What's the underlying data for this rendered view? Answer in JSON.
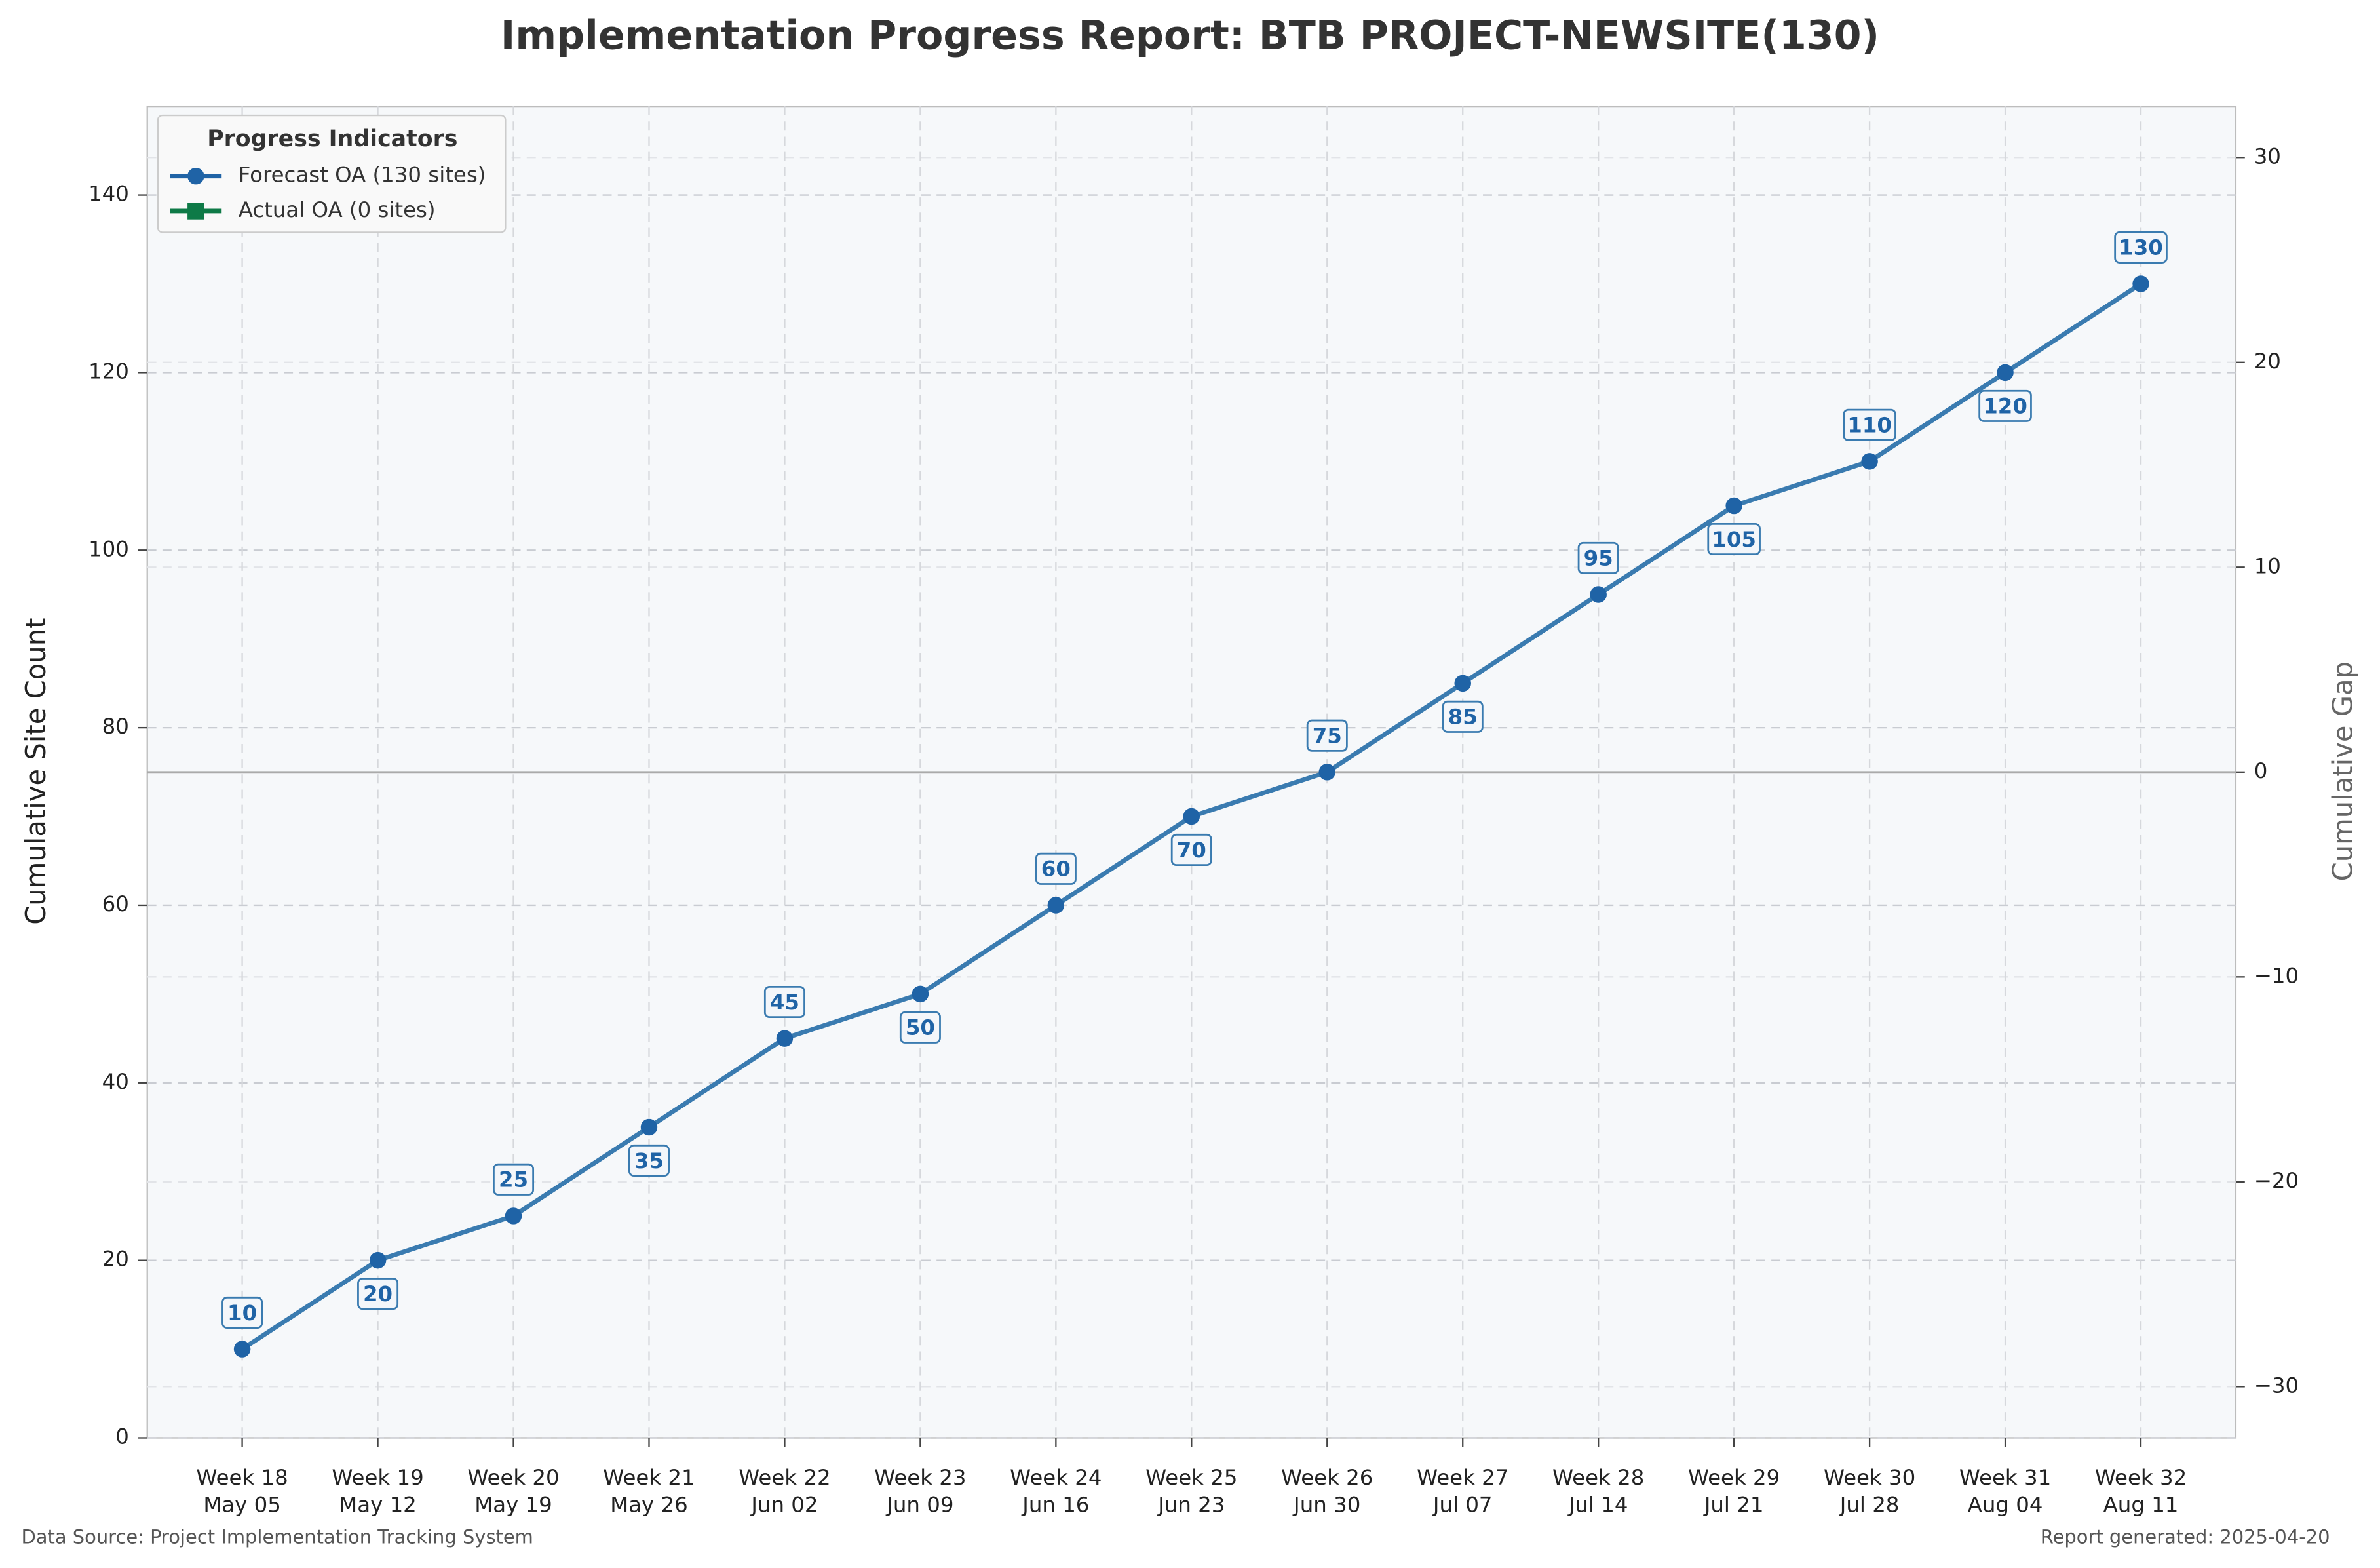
{
  "chart_data": {
    "type": "line",
    "title": "Implementation Progress Report: BTB PROJECT-NEWSITE(130)",
    "ylabel": "Cumulative Site Count",
    "y2label": "Cumulative Gap",
    "legend_title": "Progress Indicators",
    "legend": "upper left",
    "grid": true,
    "categories": [
      "Week 18",
      "Week 19",
      "Week 20",
      "Week 21",
      "Week 22",
      "Week 23",
      "Week 24",
      "Week 25",
      "Week 26",
      "Week 27",
      "Week 28",
      "Week 29",
      "Week 30",
      "Week 31",
      "Week 32"
    ],
    "category_dates": [
      "May 05",
      "May 12",
      "May 19",
      "May 26",
      "Jun 02",
      "Jun 09",
      "Jun 16",
      "Jun 23",
      "Jun 30",
      "Jul 07",
      "Jul 14",
      "Jul 21",
      "Jul 28",
      "Aug 04",
      "Aug 11"
    ],
    "series": [
      {
        "name": "Forecast OA (130 sites)",
        "color": "#3a7bb0",
        "marker_color": "#1f63a6",
        "values": [
          10,
          20,
          25,
          35,
          45,
          50,
          60,
          70,
          75,
          85,
          95,
          105,
          110,
          120,
          130
        ]
      },
      {
        "name": "Actual OA (0 sites)",
        "color": "#0e7a47",
        "marker_color": "#0e7a47",
        "values": [
          null,
          null,
          null,
          null,
          null,
          null,
          null,
          null,
          null,
          null,
          null,
          null,
          null,
          null,
          null
        ]
      }
    ],
    "ylim": [
      0,
      150
    ],
    "yticks": [
      0,
      20,
      40,
      60,
      80,
      100,
      120,
      140
    ],
    "y2lim": [
      -32.5,
      32.5
    ],
    "y2ticks": [
      {
        "value": -30,
        "label": "−30"
      },
      {
        "value": -20,
        "label": "−20"
      },
      {
        "value": -10,
        "label": "−10"
      },
      0,
      10,
      20,
      30
    ],
    "y2_reference": 0,
    "footer_left": "Data Source: Project Implementation Tracking System",
    "footer_right": "Report generated: 2025-04-20"
  }
}
